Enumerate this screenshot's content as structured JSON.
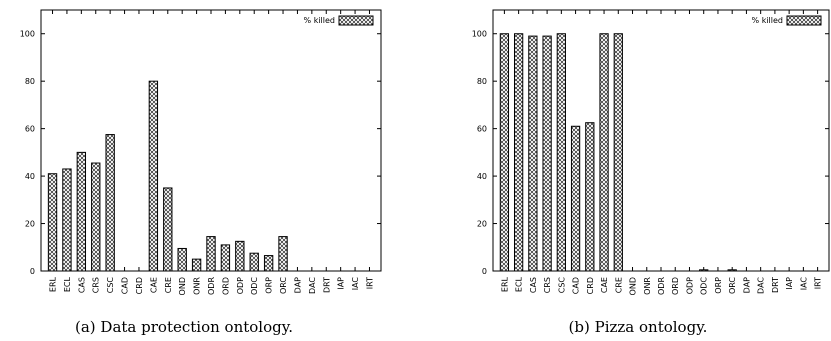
{
  "chart_data": [
    {
      "type": "bar",
      "categories": [
        "ERL",
        "ECL",
        "CAS",
        "CRS",
        "CSC",
        "CAD",
        "CRD",
        "CAE",
        "CRE",
        "OND",
        "ONR",
        "ODR",
        "ORD",
        "ODP",
        "ODC",
        "ORP",
        "ORC",
        "DAP",
        "DAC",
        "DRT",
        "IAP",
        "IAC",
        "IRT"
      ],
      "series": [
        {
          "name": "% killed",
          "values": [
            41,
            43,
            50,
            45.5,
            57.5,
            0,
            0,
            80,
            35,
            9.5,
            5,
            14.5,
            11,
            12.5,
            7.5,
            6.5,
            14.5,
            0,
            0,
            0,
            0,
            0,
            0
          ]
        }
      ],
      "ylim": [
        0,
        110
      ],
      "yticks": [
        0,
        20,
        40,
        60,
        80,
        100
      ],
      "legend_position": "top-right",
      "grid": false,
      "caption": "(a) Data protection ontology."
    },
    {
      "type": "bar",
      "categories": [
        "ERL",
        "ECL",
        "CAS",
        "CRS",
        "CSC",
        "CAD",
        "CRD",
        "CAE",
        "CRE",
        "OND",
        "ONR",
        "ODR",
        "ORD",
        "ODP",
        "ODC",
        "ORP",
        "ORC",
        "DAP",
        "DAC",
        "DRT",
        "IAP",
        "IAC",
        "IRT"
      ],
      "series": [
        {
          "name": "% killed",
          "values": [
            100,
            100,
            99,
            99,
            100,
            61,
            62.5,
            100,
            100,
            0,
            0,
            0,
            0,
            0,
            0.5,
            0,
            0.5,
            0,
            0,
            0,
            0,
            0,
            0
          ]
        }
      ],
      "ylim": [
        0,
        110
      ],
      "yticks": [
        0,
        20,
        40,
        60,
        80,
        100
      ],
      "legend_position": "top-right",
      "grid": false,
      "caption": "(b) Pizza ontology."
    }
  ]
}
